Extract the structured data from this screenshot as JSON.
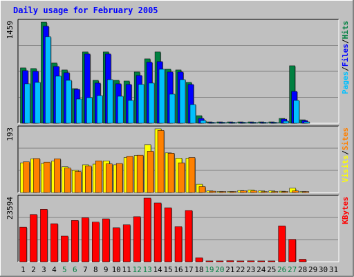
{
  "chart_data": [
    {
      "type": "bar",
      "title": "Daily usage for February 2005",
      "ymax_label": "1459",
      "legend": [
        {
          "name": "Pages",
          "color": "#00c0ff"
        },
        {
          "name": "Files",
          "color": "#0000ff"
        },
        {
          "name": "Hits",
          "color": "#008040"
        }
      ],
      "categories": [
        "1",
        "2",
        "3",
        "4",
        "5",
        "6",
        "7",
        "8",
        "9",
        "10",
        "11",
        "12",
        "13",
        "14",
        "15",
        "16",
        "17",
        "18",
        "19",
        "20",
        "21",
        "22",
        "23",
        "24",
        "25",
        "26",
        "27",
        "28",
        "29",
        "30",
        "31"
      ],
      "weekend_days": [
        "5",
        "6",
        "12",
        "13",
        "19",
        "20",
        "26",
        "27"
      ],
      "ylim": [
        0,
        1459
      ],
      "series": [
        {
          "name": "Hits",
          "color": "#008040",
          "values": [
            800,
            790,
            1459,
            870,
            770,
            500,
            1030,
            620,
            1030,
            620,
            610,
            740,
            930,
            1030,
            780,
            770,
            590,
            110,
            20,
            20,
            20,
            20,
            20,
            20,
            20,
            70,
            830,
            50,
            0,
            0,
            0
          ]
        },
        {
          "name": "Files",
          "color": "#0000ff",
          "values": [
            760,
            750,
            1400,
            820,
            730,
            490,
            1000,
            580,
            1000,
            570,
            560,
            690,
            880,
            890,
            740,
            740,
            560,
            70,
            15,
            15,
            15,
            15,
            15,
            15,
            15,
            60,
            460,
            40,
            0,
            0,
            0
          ]
        },
        {
          "name": "Pages",
          "color": "#00c0ff",
          "values": [
            570,
            590,
            1250,
            680,
            620,
            350,
            370,
            400,
            630,
            390,
            330,
            560,
            580,
            780,
            420,
            630,
            270,
            40,
            5,
            5,
            5,
            5,
            5,
            5,
            5,
            30,
            330,
            20,
            0,
            0,
            0
          ]
        }
      ]
    },
    {
      "type": "bar",
      "ymax_label": "193",
      "legend": [
        {
          "name": "Visits",
          "color": "#ffff00"
        },
        {
          "name": "Sites",
          "color": "#ff8000"
        }
      ],
      "categories": [
        "1",
        "2",
        "3",
        "4",
        "5",
        "6",
        "7",
        "8",
        "9",
        "10",
        "11",
        "12",
        "13",
        "14",
        "15",
        "16",
        "17",
        "18",
        "19",
        "20",
        "21",
        "22",
        "23",
        "24",
        "25",
        "26",
        "27",
        "28",
        "29",
        "30",
        "31"
      ],
      "ylim": [
        0,
        193
      ],
      "series": [
        {
          "name": "Visits",
          "color": "#ffff00",
          "values": [
            90,
            102,
            88,
            95,
            78,
            67,
            84,
            86,
            96,
            84,
            106,
            112,
            145,
            193,
            120,
            104,
            104,
            25,
            5,
            3,
            3,
            6,
            8,
            5,
            5,
            4,
            13,
            3,
            0,
            0,
            0
          ]
        },
        {
          "name": "Sites",
          "color": "#ff8000",
          "values": [
            93,
            103,
            92,
            102,
            74,
            64,
            80,
            96,
            87,
            88,
            110,
            113,
            125,
            188,
            119,
            90,
            106,
            18,
            4,
            3,
            3,
            5,
            5,
            3,
            3,
            3,
            5,
            3,
            0,
            0,
            0
          ]
        }
      ]
    },
    {
      "type": "bar",
      "ymax_label": "23594",
      "legend": [
        {
          "name": "KBytes",
          "color": "#ff0000"
        }
      ],
      "categories": [
        "1",
        "2",
        "3",
        "4",
        "5",
        "6",
        "7",
        "8",
        "9",
        "10",
        "11",
        "12",
        "13",
        "14",
        "15",
        "16",
        "17",
        "18",
        "19",
        "20",
        "21",
        "22",
        "23",
        "24",
        "25",
        "26",
        "27",
        "28",
        "29",
        "30",
        "31"
      ],
      "ylim": [
        0,
        23594
      ],
      "series": [
        {
          "name": "KBytes",
          "color": "#ff0000",
          "values": [
            12800,
            17500,
            19400,
            14100,
            9500,
            15300,
            16300,
            14700,
            15900,
            12600,
            13700,
            16700,
            23594,
            21800,
            20000,
            13000,
            19000,
            1500,
            300,
            300,
            400,
            300,
            350,
            300,
            300,
            13300,
            8300,
            900,
            0,
            0,
            0
          ]
        }
      ]
    }
  ]
}
